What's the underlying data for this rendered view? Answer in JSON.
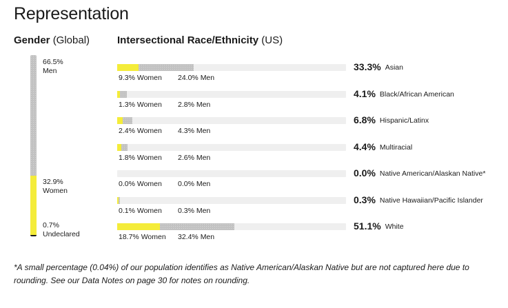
{
  "page": {
    "title": "Representation",
    "footnote": "*A small percentage (0.04%) of our population identifies as Native American/Alaskan Native but are not captured here due to rounding. See our Data Notes on page 30 for notes on rounding."
  },
  "colors": {
    "women": "#f4ec3a",
    "men": "#c2c2c2",
    "track": "#efefef"
  },
  "chart_data": [
    {
      "type": "bar",
      "orientation": "vertical-stacked",
      "title_bold": "Gender",
      "title_light": "(Global)",
      "segments": [
        {
          "pct": 66.5,
          "pct_label": "66.5%",
          "label": "Men",
          "color": "#c2c2c2"
        },
        {
          "pct": 32.9,
          "pct_label": "32.9%",
          "label": "Women",
          "color": "#f4ec3a"
        },
        {
          "pct": 0.7,
          "pct_label": "0.7%",
          "label": "Undeclared",
          "color": "#1a1a1a"
        }
      ]
    },
    {
      "type": "bar",
      "orientation": "horizontal-stacked",
      "title_bold": "Intersectional Race/Ethnicity",
      "title_light": "(US)",
      "xlim": [
        0,
        100
      ],
      "rows": [
        {
          "category": "Asian",
          "total": "33.3%",
          "women": 9.3,
          "women_label": "9.3% Women",
          "men": 24.0,
          "men_label": "24.0% Men"
        },
        {
          "category": "Black/African American",
          "total": "4.1%",
          "women": 1.3,
          "women_label": "1.3% Women",
          "men": 2.8,
          "men_label": "2.8% Men"
        },
        {
          "category": "Hispanic/Latinx",
          "total": "6.8%",
          "women": 2.4,
          "women_label": "2.4% Women",
          "men": 4.3,
          "men_label": "4.3% Men"
        },
        {
          "category": "Multiracial",
          "total": "4.4%",
          "women": 1.8,
          "women_label": "1.8% Women",
          "men": 2.6,
          "men_label": "2.6% Men"
        },
        {
          "category": "Native American/Alaskan Native*",
          "total": "0.0%",
          "women": 0.0,
          "women_label": "0.0% Women",
          "men": 0.0,
          "men_label": "0.0% Men"
        },
        {
          "category": "Native Hawaiian/Pacific Islander",
          "total": "0.3%",
          "women": 0.1,
          "women_label": "0.1% Women",
          "men": 0.3,
          "men_label": "0.3% Men"
        },
        {
          "category": "White",
          "total": "51.1%",
          "women": 18.7,
          "women_label": "18.7% Women",
          "men": 32.4,
          "men_label": "32.4% Men"
        }
      ]
    }
  ]
}
